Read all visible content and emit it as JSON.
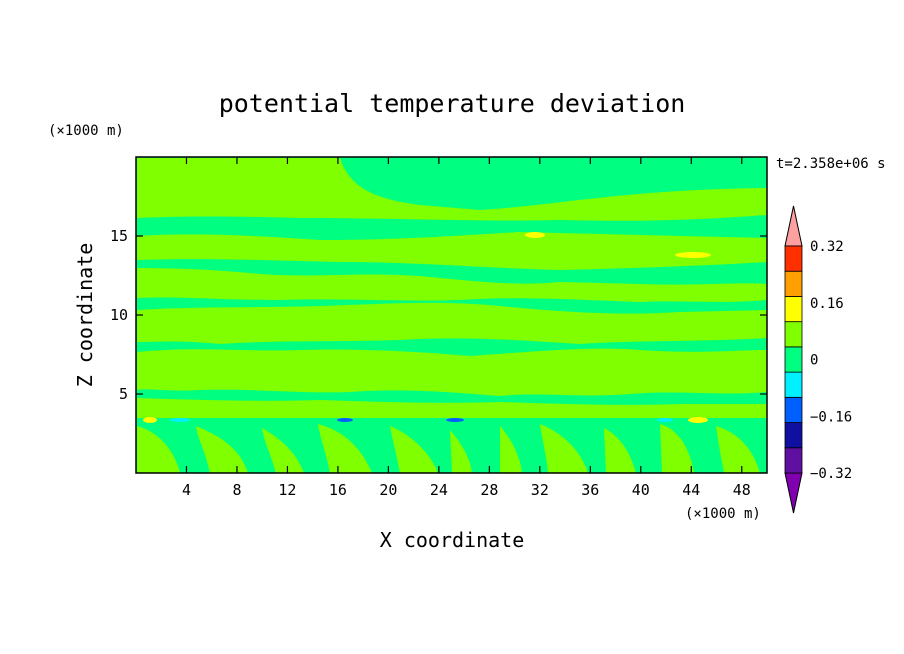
{
  "chart_data": {
    "type": "heatmap",
    "title": "potential temperature deviation",
    "xlabel": "X coordinate",
    "ylabel": "Z coordinate",
    "x_unit": "(×1000 m)",
    "y_unit": "(×1000 m)",
    "time_label": "t=2.358e+06 s",
    "xlim": [
      0,
      50
    ],
    "ylim": [
      0,
      20
    ],
    "x_ticks": [
      4,
      8,
      12,
      16,
      20,
      24,
      28,
      32,
      36,
      40,
      44,
      48
    ],
    "y_ticks": [
      5,
      10,
      15
    ],
    "colorbar": {
      "levels": [
        -0.4,
        -0.32,
        -0.24,
        -0.16,
        -0.08,
        0,
        0.08,
        0.16,
        0.24,
        0.32,
        0.4
      ],
      "tick_labels": [
        "0.32",
        "0.16",
        "0",
        "−0.16",
        "−0.32"
      ],
      "tick_values": [
        0.32,
        0.16,
        0,
        -0.16,
        -0.32
      ],
      "colors": [
        "#8000b0",
        "#6010a0",
        "#1010a0",
        "#0060ff",
        "#00f0ff",
        "#00ff80",
        "#80ff00",
        "#ffff00",
        "#ffa000",
        "#ff3000",
        "#ffa0a0"
      ],
      "extend": "both"
    },
    "field_description": "mostly 0 to 0.08 (green) with layered +0.08 to +0.16 (yellow-green) bands; small positive and negative patches near z=3.5 km",
    "background_color": "#00ff80",
    "positive_color": "#80ff00"
  }
}
